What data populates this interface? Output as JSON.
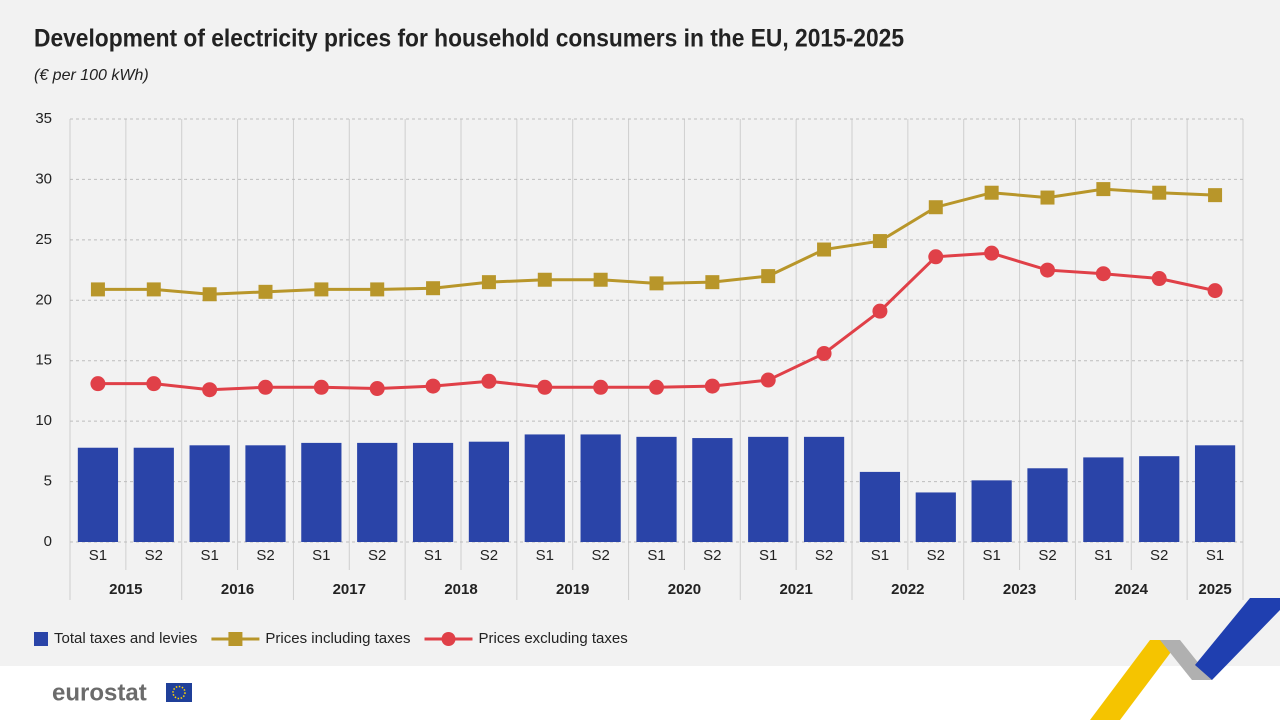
{
  "chart_data": {
    "type": "combo",
    "title": "Development of electricity prices for household consumers in the EU, 2015-2025",
    "subtitle": "(€ per 100 kWh)",
    "categories": [
      "S1",
      "S2",
      "S1",
      "S2",
      "S1",
      "S2",
      "S1",
      "S2",
      "S1",
      "S2",
      "S1",
      "S2",
      "S1",
      "S2",
      "S1",
      "S2",
      "S1",
      "S2",
      "S1",
      "S2",
      "S1"
    ],
    "years": [
      "2015",
      "2016",
      "2017",
      "2018",
      "2019",
      "2020",
      "2021",
      "2022",
      "2023",
      "2024",
      "2025"
    ],
    "series": [
      {
        "name": "Total taxes and levies",
        "type": "bar",
        "color": "#2a44a8",
        "values": [
          7.8,
          7.8,
          8.0,
          8.0,
          8.2,
          8.2,
          8.2,
          8.3,
          8.9,
          8.9,
          8.7,
          8.6,
          8.7,
          8.7,
          5.8,
          4.1,
          5.1,
          6.1,
          7.0,
          7.1,
          8.0
        ]
      },
      {
        "name": "Prices including taxes",
        "type": "line",
        "marker": "square",
        "color": "#b8962a",
        "values": [
          20.9,
          20.9,
          20.5,
          20.7,
          20.9,
          20.9,
          21.0,
          21.5,
          21.7,
          21.7,
          21.4,
          21.5,
          22.0,
          24.2,
          24.9,
          27.7,
          28.9,
          28.5,
          29.2,
          28.9,
          28.7
        ]
      },
      {
        "name": "Prices excluding taxes",
        "type": "line",
        "marker": "circle",
        "color": "#e04048",
        "values": [
          13.1,
          13.1,
          12.6,
          12.8,
          12.8,
          12.7,
          12.9,
          13.3,
          12.8,
          12.8,
          12.8,
          12.9,
          13.4,
          15.6,
          19.1,
          23.6,
          23.9,
          22.5,
          22.2,
          21.8,
          20.8
        ]
      }
    ],
    "ylim": [
      0,
      35
    ],
    "yticks": [
      0,
      5,
      10,
      15,
      20,
      25,
      30,
      35
    ],
    "grid": true
  },
  "branding": "eurostat"
}
